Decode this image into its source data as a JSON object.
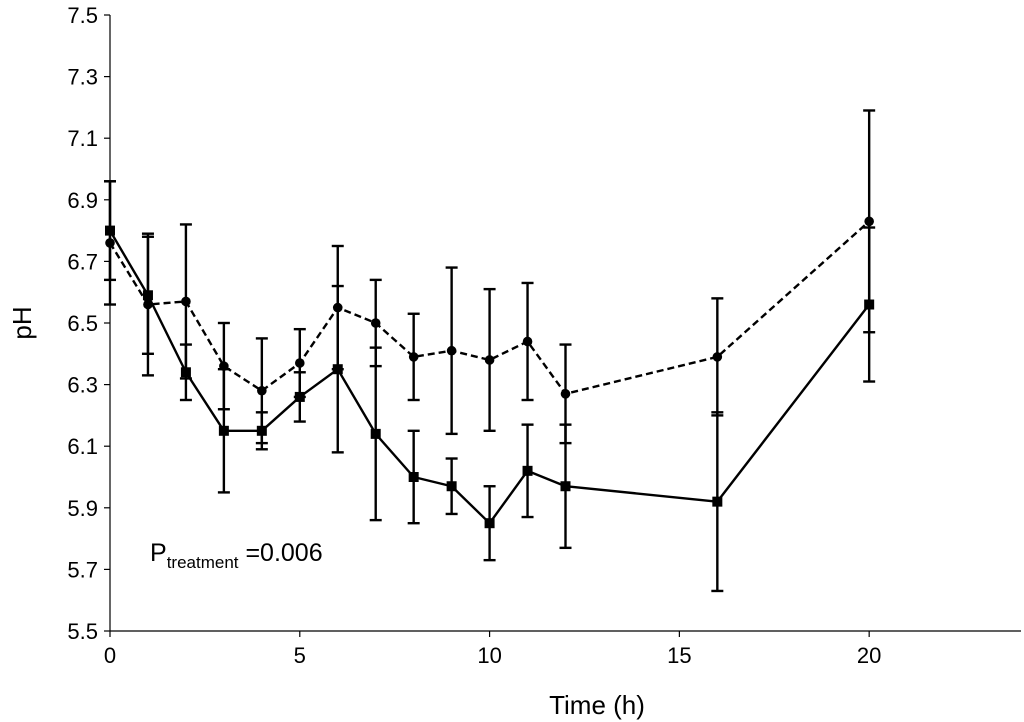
{
  "chart_data": {
    "type": "line",
    "title": "",
    "xlabel": "Time (h)",
    "ylabel": "pH",
    "xlim": [
      0,
      24
    ],
    "ylim": [
      5.5,
      7.5
    ],
    "xticks": [
      0,
      5,
      10,
      15,
      20
    ],
    "yticks": [
      5.5,
      5.7,
      5.9,
      6.1,
      6.3,
      6.5,
      6.7,
      6.9,
      7.1,
      7.3,
      7.5
    ],
    "xtick_labels": [
      "0",
      "5",
      "10",
      "15",
      "20"
    ],
    "ytick_labels": [
      "5.5",
      "5.7",
      "5.9",
      "6.1",
      "6.3",
      "6.5",
      "6.7",
      "6.9",
      "7.1",
      "7.3",
      "7.5"
    ],
    "grid": false,
    "annotation": {
      "main": "P",
      "sub": "treatment",
      "value": " =0.006"
    },
    "series": [
      {
        "name": "dashed-circle",
        "line_style": "dashed",
        "marker": "circle",
        "color": "#000000",
        "x": [
          0,
          1,
          2,
          3,
          4,
          5,
          6,
          7,
          8,
          9,
          10,
          11,
          12,
          16,
          20
        ],
        "y": [
          6.76,
          6.56,
          6.57,
          6.36,
          6.28,
          6.37,
          6.55,
          6.5,
          6.39,
          6.41,
          6.38,
          6.44,
          6.27,
          6.39,
          6.83
        ],
        "err": [
          0.2,
          0.23,
          0.25,
          0.14,
          0.17,
          0.11,
          0.2,
          0.14,
          0.14,
          0.27,
          0.23,
          0.19,
          0.16,
          0.19,
          0.36
        ]
      },
      {
        "name": "solid-square",
        "line_style": "solid",
        "marker": "square",
        "color": "#000000",
        "x": [
          0,
          1,
          2,
          3,
          4,
          5,
          6,
          7,
          8,
          9,
          10,
          11,
          12,
          16,
          20
        ],
        "y": [
          6.8,
          6.59,
          6.34,
          6.15,
          6.15,
          6.26,
          6.35,
          6.14,
          6.0,
          5.97,
          5.85,
          6.02,
          5.97,
          5.92,
          6.56
        ],
        "err": [
          0.16,
          0.19,
          0.09,
          0.2,
          0.06,
          0.08,
          0.27,
          0.28,
          0.15,
          0.09,
          0.12,
          0.15,
          0.2,
          0.29,
          0.25
        ]
      }
    ]
  }
}
